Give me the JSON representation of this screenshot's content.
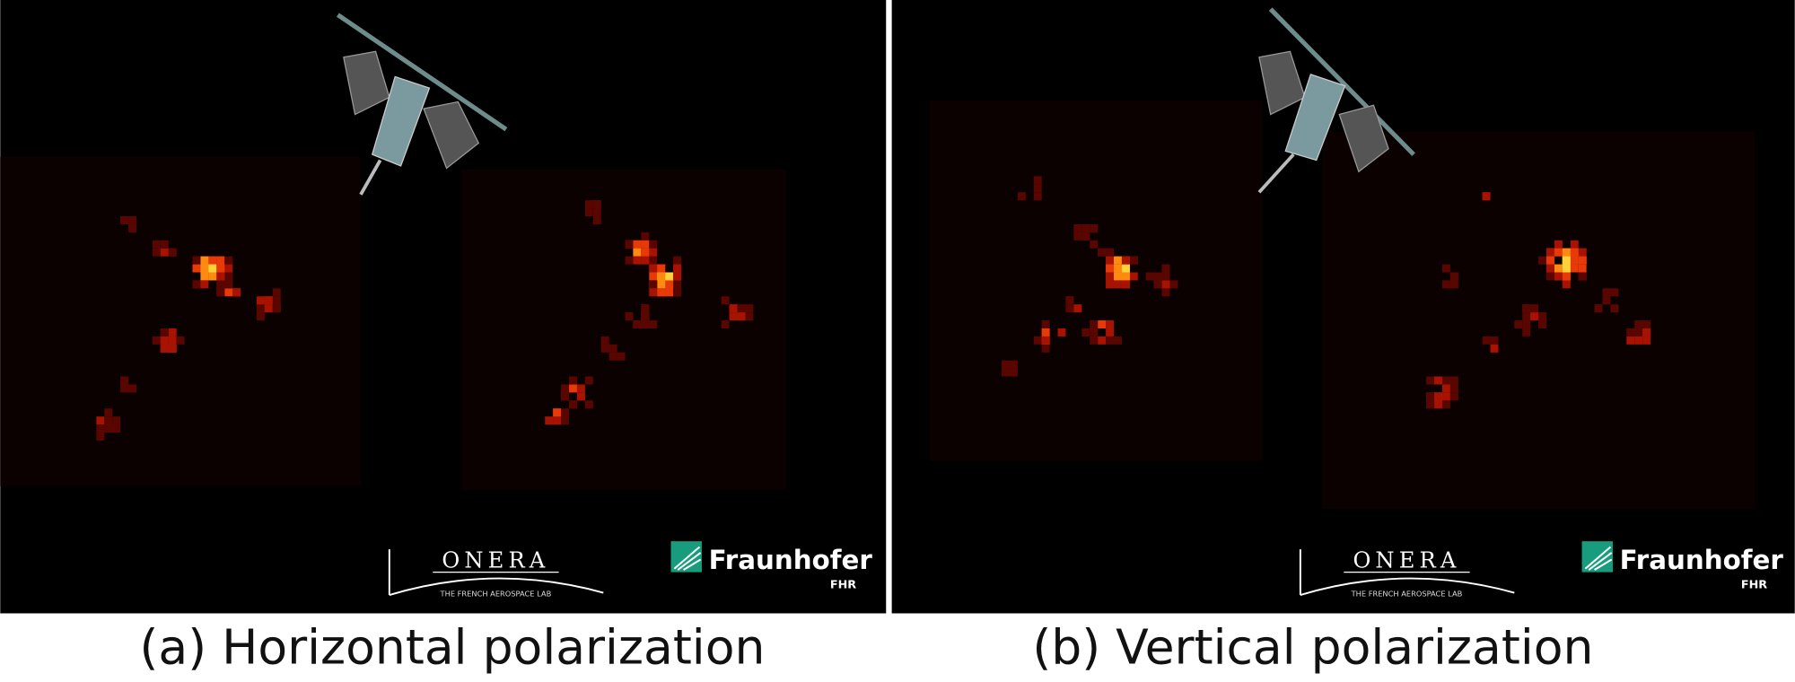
{
  "panels": [
    {
      "caption": "(a) Horizontal polarization",
      "logos": {
        "onera": "ONERA",
        "onera_tagline": "THE FRENCH AEROSPACE LAB",
        "fraunhofer": "Fraunhofer",
        "fhr": "FHR"
      }
    },
    {
      "caption": "(b) Vertical polarization",
      "logos": {
        "onera": "ONERA",
        "onera_tagline": "THE FRENCH AEROSPACE LAB",
        "fraunhofer": "Fraunhofer",
        "fhr": "FHR"
      }
    }
  ]
}
